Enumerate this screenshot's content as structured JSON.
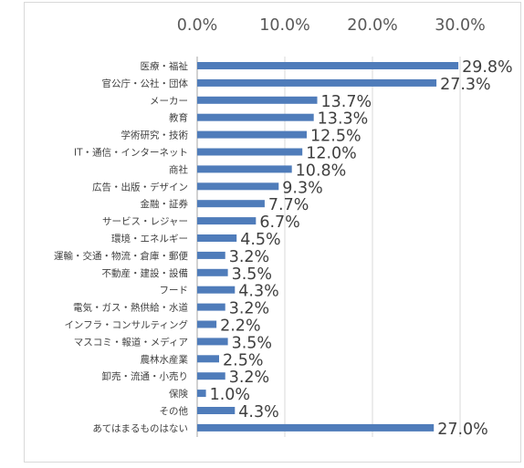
{
  "chart_data": {
    "type": "bar",
    "orientation": "horizontal",
    "categories": [
      "医療・福祉",
      "官公庁・公社・団体",
      "メーカー",
      "教育",
      "学術研究・技術",
      "IT・通信・インターネット",
      "商社",
      "広告・出版・デザイン",
      "金融・証券",
      "サービス・レジャー",
      "環境・エネルギー",
      "運輸・交通・物流・倉庫・郵便",
      "不動産・建設・設備",
      "フード",
      "電気・ガス・熱供給・水道",
      "インフラ・コンサルティング",
      "マスコミ・報道・メディア",
      "農林水産業",
      "卸売・流通・小売り",
      "保険",
      "その他",
      "あてはまるものはない"
    ],
    "values": [
      29.8,
      27.3,
      13.7,
      13.3,
      12.5,
      12.0,
      10.8,
      9.3,
      7.7,
      6.7,
      4.5,
      3.2,
      3.5,
      4.3,
      3.2,
      2.2,
      3.5,
      2.5,
      3.2,
      1.0,
      4.3,
      27.0
    ],
    "data_labels": [
      "29.8%",
      "27.3%",
      "13.7%",
      "13.3%",
      "12.5%",
      "12.0%",
      "10.8%",
      "9.3%",
      "7.7%",
      "6.7%",
      "4.5%",
      "3.2%",
      "3.5%",
      "4.3%",
      "3.2%",
      "2.2%",
      "3.5%",
      "2.5%",
      "3.2%",
      "1.0%",
      "4.3%",
      "27.0%"
    ],
    "x_ticks": [
      "0.0%",
      "10.0%",
      "20.0%",
      "30.0%"
    ],
    "x_tick_values": [
      0,
      10,
      20,
      30
    ],
    "xlim": [
      0,
      30
    ],
    "x_axis_position": "top",
    "grid": true,
    "legend": "none",
    "title": "",
    "xlabel": "",
    "ylabel": "",
    "colors": {
      "bar": "#4f7cba",
      "grid": "#d9d9d9",
      "axis": "#a6a6a6"
    }
  }
}
